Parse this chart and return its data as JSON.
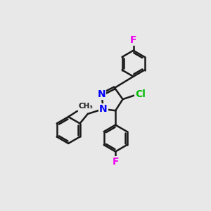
{
  "background_color": "#e8e8e8",
  "bond_color": "#1a1a1a",
  "bond_width": 1.8,
  "atom_colors": {
    "N": "#0000ff",
    "Cl": "#00bb00",
    "F": "#ee00ee"
  }
}
